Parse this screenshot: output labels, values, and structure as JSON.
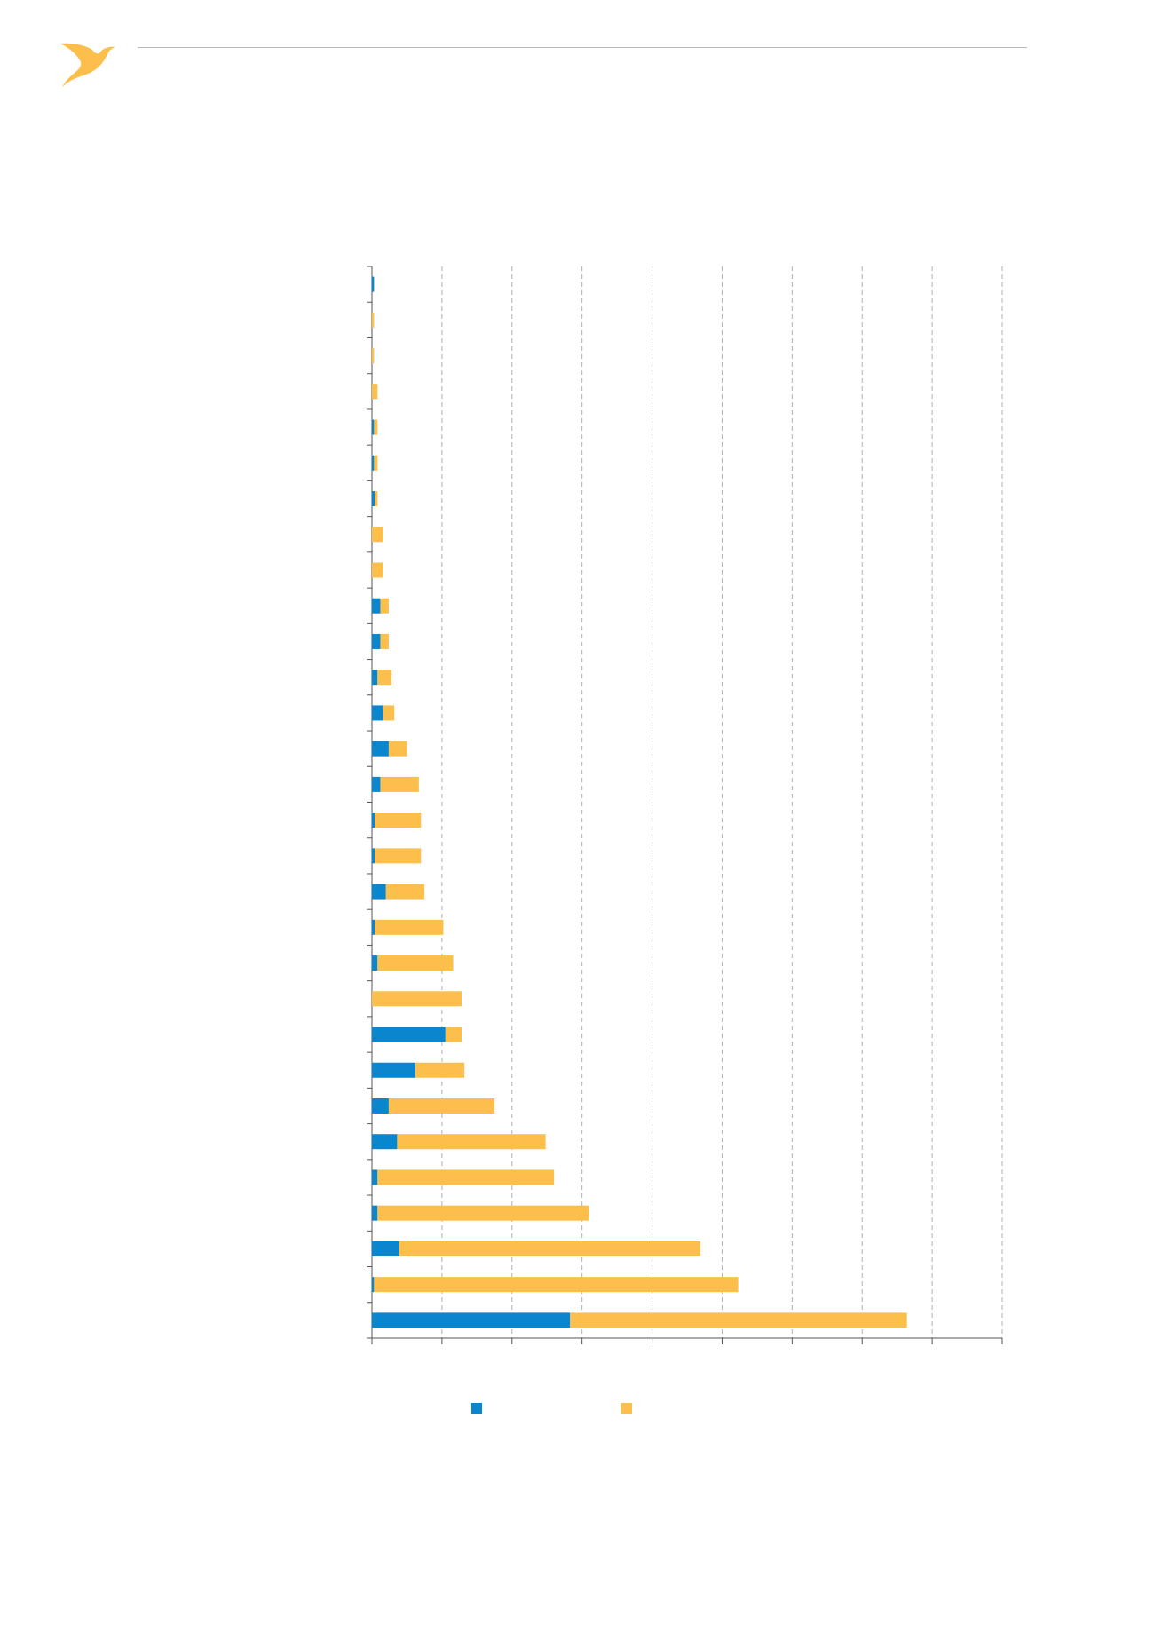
{
  "colors": {
    "accent_blue": "#0a86cf",
    "accent_yellow": "#fcbf4c",
    "logo": "#fcbf4c",
    "grid": "#b0b0b0",
    "axis": "#555555"
  },
  "header": {
    "logo_icon": "bird-logo-icon"
  },
  "chart_data": {
    "type": "bar",
    "orientation": "horizontal",
    "stacked": true,
    "x_range": [
      0,
      9
    ],
    "x_tick_count": 10,
    "grid": true,
    "legend_position": "bottom",
    "series": [
      {
        "color": "#0a86cf",
        "values": [
          0.03,
          0,
          0,
          0,
          0.03,
          0.03,
          0.04,
          0,
          0,
          0.12,
          0.12,
          0.08,
          0.16,
          0.24,
          0.12,
          0.04,
          0.04,
          0.2,
          0.04,
          0.08,
          0,
          1.05,
          0.62,
          0.24,
          0.36,
          0.08,
          0.08,
          0.39,
          0.03,
          2.83
        ]
      },
      {
        "color": "#fcbf4c",
        "values": [
          0,
          0.03,
          0.03,
          0.08,
          0.05,
          0.05,
          0.04,
          0.16,
          0.16,
          0.12,
          0.12,
          0.2,
          0.16,
          0.26,
          0.55,
          0.66,
          0.66,
          0.55,
          0.98,
          1.08,
          1.28,
          0.23,
          0.7,
          1.51,
          2.12,
          2.52,
          3.02,
          4.3,
          5.2,
          4.81
        ]
      }
    ]
  }
}
